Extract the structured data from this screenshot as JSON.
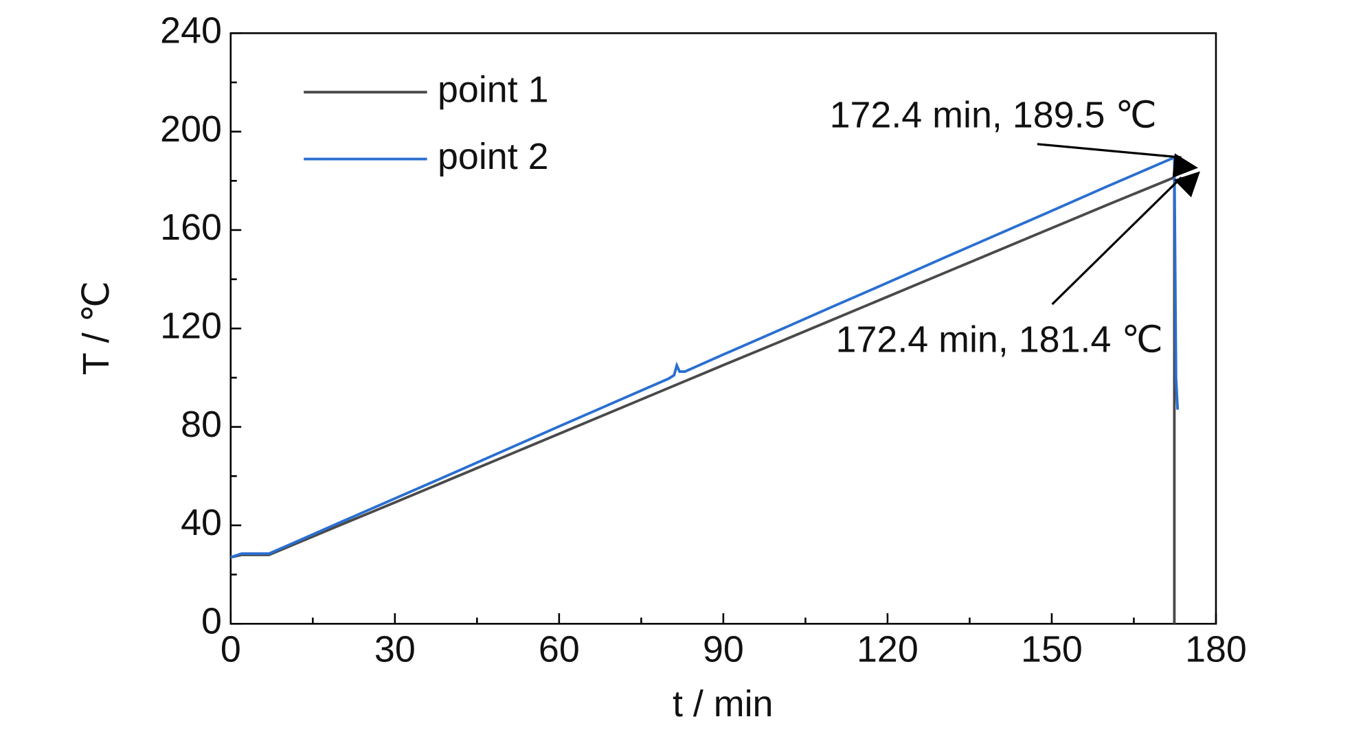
{
  "chart_data": {
    "type": "line",
    "xlabel": "t / min",
    "ylabel": "T / ℃",
    "xlim": [
      0,
      180
    ],
    "xticks": [
      0,
      30,
      60,
      90,
      120,
      150,
      180
    ],
    "xticks_minor": [
      15,
      45,
      75,
      105,
      135,
      165
    ],
    "ylim": [
      0,
      240
    ],
    "yticks": [
      0,
      40,
      80,
      120,
      160,
      200,
      240
    ],
    "yticks_minor": [
      20,
      60,
      100,
      140,
      180,
      220
    ],
    "legend": "upper left",
    "series": [
      {
        "name": "point 1",
        "color": "#4a4a4a",
        "x": [
          0,
          2,
          5,
          7,
          10,
          20,
          30,
          40,
          50,
          60,
          70,
          80,
          90,
          100,
          110,
          120,
          130,
          140,
          150,
          160,
          170,
          172.4,
          172.4
        ],
        "values": [
          27,
          28,
          28,
          28,
          30.8,
          40.1,
          49.3,
          58.6,
          67.9,
          77.2,
          86.5,
          95.8,
          105.1,
          114.3,
          123.6,
          132.9,
          142.2,
          151.5,
          160.8,
          170.1,
          179.2,
          181.4,
          0
        ]
      },
      {
        "name": "point 2",
        "color": "#2a6fd0",
        "x": [
          0,
          2,
          5,
          7,
          10,
          20,
          30,
          40,
          50,
          60,
          70,
          80,
          81,
          81.5,
          82,
          83,
          90,
          100,
          110,
          120,
          130,
          140,
          150,
          160,
          170,
          172.4,
          172.7,
          173
        ],
        "values": [
          27,
          28.5,
          28.5,
          28.5,
          31.4,
          41.2,
          50.9,
          60.6,
          70.4,
          80.2,
          89.9,
          99.6,
          101,
          105,
          102.5,
          102.5,
          109.4,
          119.1,
          128.9,
          138.6,
          148.4,
          158.1,
          167.8,
          177.6,
          187.2,
          189.5,
          100,
          87
        ]
      }
    ],
    "annotations": [
      {
        "text": "172.4 min, 189.5 ℃",
        "x": 172.4,
        "y": 189.5
      },
      {
        "text": "172.4 min, 181.4 ℃",
        "x": 172.4,
        "y": 181.4
      }
    ]
  }
}
